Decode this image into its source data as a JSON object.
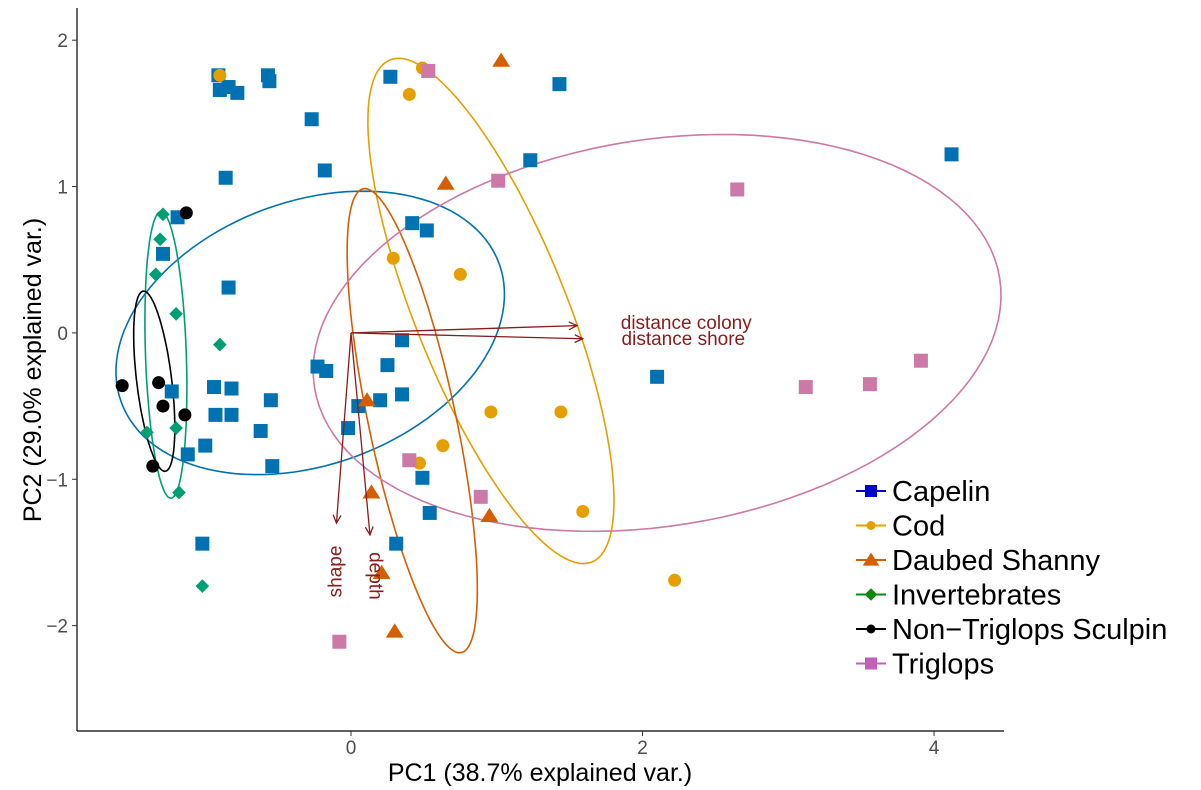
{
  "chart_data": {
    "type": "scatter",
    "title": "",
    "xlabel": "PC1 (38.7% explained var.)",
    "ylabel": "PC2 (29.0% explained var.)",
    "xlim": [
      -1.88,
      4.48
    ],
    "ylim": [
      -2.72,
      2.22
    ],
    "x_ticks": [
      0,
      2,
      4
    ],
    "y_ticks": [
      -2,
      -1,
      0,
      1,
      2
    ],
    "x_tick_labels": [
      "0",
      "2",
      "4"
    ],
    "y_tick_labels": [
      "−2",
      "−1",
      "0",
      "1",
      "2"
    ],
    "grid": false,
    "legend_position": "right",
    "series": [
      {
        "name": "Capelin",
        "color": "#0072b2",
        "legend_color": "#0000cc",
        "marker": "square",
        "points": [
          [
            -0.91,
            1.76
          ],
          [
            -0.9,
            1.66
          ],
          [
            -0.84,
            1.68
          ],
          [
            -0.78,
            1.64
          ],
          [
            -0.57,
            1.76
          ],
          [
            -0.56,
            1.72
          ],
          [
            -0.27,
            1.46
          ],
          [
            0.27,
            1.75
          ],
          [
            1.43,
            1.7
          ],
          [
            -0.86,
            1.06
          ],
          [
            -0.18,
            1.11
          ],
          [
            1.23,
            1.18
          ],
          [
            4.12,
            1.22
          ],
          [
            -1.19,
            0.79
          ],
          [
            -1.29,
            0.54
          ],
          [
            0.42,
            0.75
          ],
          [
            0.52,
            0.7
          ],
          [
            -0.84,
            0.31
          ],
          [
            0.35,
            -0.05
          ],
          [
            -0.23,
            -0.23
          ],
          [
            -0.17,
            -0.26
          ],
          [
            0.25,
            -0.22
          ],
          [
            -0.82,
            -0.38
          ],
          [
            -0.94,
            -0.37
          ],
          [
            -1.23,
            -0.4
          ],
          [
            -0.93,
            -0.56
          ],
          [
            -0.82,
            -0.56
          ],
          [
            -0.55,
            -0.46
          ],
          [
            0.35,
            -0.42
          ],
          [
            2.1,
            -0.3
          ],
          [
            -0.62,
            -0.67
          ],
          [
            0.05,
            -0.5
          ],
          [
            0.2,
            -0.46
          ],
          [
            -0.02,
            -0.65
          ],
          [
            -1.0,
            -0.77
          ],
          [
            -1.12,
            -0.83
          ],
          [
            -0.54,
            -0.91
          ],
          [
            0.49,
            -0.99
          ],
          [
            0.54,
            -1.23
          ],
          [
            0.31,
            -1.44
          ],
          [
            -1.02,
            -1.44
          ]
        ]
      },
      {
        "name": "Cod",
        "color": "#e69f00",
        "legend_color": "#e69f00",
        "marker": "circle",
        "points": [
          [
            -0.9,
            1.76
          ],
          [
            0.49,
            1.81
          ],
          [
            0.4,
            1.63
          ],
          [
            0.29,
            0.51
          ],
          [
            0.75,
            0.4
          ],
          [
            0.96,
            -0.54
          ],
          [
            1.44,
            -0.54
          ],
          [
            0.47,
            -0.89
          ],
          [
            0.63,
            -0.77
          ],
          [
            1.59,
            -1.22
          ],
          [
            2.22,
            -1.69
          ]
        ]
      },
      {
        "name": "Daubed Shanny",
        "color": "#d55e00",
        "legend_color": "#d55e00",
        "marker": "triangle",
        "points": [
          [
            1.03,
            1.86
          ],
          [
            0.65,
            1.02
          ],
          [
            0.11,
            -0.46
          ],
          [
            0.14,
            -1.09
          ],
          [
            0.95,
            -1.25
          ],
          [
            0.21,
            -1.64
          ],
          [
            0.3,
            -2.04
          ]
        ]
      },
      {
        "name": "Invertebrates",
        "color": "#009e73",
        "legend_color": "#0a8a0a",
        "marker": "diamond",
        "points": [
          [
            -1.29,
            0.81
          ],
          [
            -1.31,
            0.64
          ],
          [
            -1.34,
            0.4
          ],
          [
            -1.2,
            0.13
          ],
          [
            -0.9,
            -0.08
          ],
          [
            -1.2,
            -0.65
          ],
          [
            -1.4,
            -0.68
          ],
          [
            -1.18,
            -1.09
          ],
          [
            -1.02,
            -1.73
          ]
        ]
      },
      {
        "name": "Non−Triglops Sculpin",
        "color": "#000000",
        "legend_color": "#000000",
        "marker": "circle",
        "points": [
          [
            -1.13,
            0.82
          ],
          [
            -1.57,
            -0.36
          ],
          [
            -1.32,
            -0.34
          ],
          [
            -1.29,
            -0.5
          ],
          [
            -1.14,
            -0.56
          ],
          [
            -1.36,
            -0.91
          ]
        ]
      },
      {
        "name": "Triglops",
        "color": "#cc79a7",
        "legend_color": "#c060b8",
        "marker": "square",
        "points": [
          [
            0.53,
            1.79
          ],
          [
            1.01,
            1.04
          ],
          [
            2.65,
            0.98
          ],
          [
            3.12,
            -0.37
          ],
          [
            3.56,
            -0.35
          ],
          [
            3.91,
            -0.19
          ],
          [
            0.4,
            -0.87
          ],
          [
            0.89,
            -1.12
          ],
          [
            -0.08,
            -2.11
          ]
        ]
      }
    ],
    "ellipses": [
      {
        "group": "Capelin",
        "color": "#0072b2",
        "cx": -0.28,
        "cy": 0.0,
        "a": 1.38,
        "b": 0.9,
        "angle_deg": 20
      },
      {
        "group": "Cod",
        "color": "#e69f00",
        "cx": 0.96,
        "cy": 0.15,
        "a": 1.85,
        "b": 0.52,
        "angle_deg": -68
      },
      {
        "group": "Daubed Shanny",
        "color": "#d55e00",
        "cx": 0.42,
        "cy": -0.6,
        "a": 1.62,
        "b": 0.3,
        "angle_deg": -78
      },
      {
        "group": "Invertebrates",
        "color": "#009e73",
        "cx": -1.27,
        "cy": -0.15,
        "a": 0.98,
        "b": 0.14,
        "angle_deg": -88
      },
      {
        "group": "Non−Triglops Sculpin",
        "color": "#000000",
        "cx": -1.35,
        "cy": -0.33,
        "a": 0.62,
        "b": 0.12,
        "angle_deg": -83
      },
      {
        "group": "Triglops",
        "color": "#cc79a7",
        "cx": 2.1,
        "cy": 0.0,
        "a": 2.38,
        "b": 1.32,
        "angle_deg": 9
      }
    ],
    "loadings": [
      {
        "label": "distance colony",
        "x": 1.55,
        "y": 0.05,
        "lx": 2.3,
        "ly": 0.06
      },
      {
        "label": "distance shore",
        "x": 1.59,
        "y": -0.04,
        "lx": 2.28,
        "ly": -0.05
      },
      {
        "label": "shape",
        "x": -0.1,
        "y": -1.3,
        "lx": -0.1,
        "ly": -1.63,
        "rotate": -90
      },
      {
        "label": "depth",
        "x": 0.13,
        "y": -1.38,
        "lx": 0.16,
        "ly": -1.66,
        "rotate": 90
      }
    ],
    "loading_color": "#8b1a1a"
  }
}
